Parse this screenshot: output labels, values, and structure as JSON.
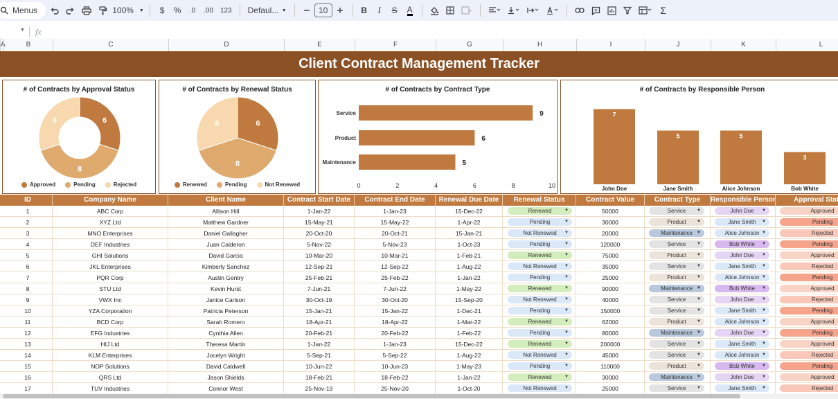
{
  "toolbar": {
    "menus_label": "Menus",
    "zoom": "100%",
    "currency": "$",
    "percent": "%",
    "dec_decrease": ".0",
    "dec_increase": ".00",
    "number_format": "123",
    "font": "Defaul...",
    "font_size": "10"
  },
  "formula_bar": {
    "cell_ref": "",
    "fx": "fx",
    "value": ""
  },
  "columns": [
    "A",
    "B",
    "C",
    "D",
    "E",
    "F",
    "G",
    "H",
    "I",
    "J",
    "K",
    "L"
  ],
  "title": "Client Contract Management Tracker",
  "charts": {
    "colors": {
      "dark": "#c07a3f",
      "mid": "#dfaa6e",
      "light": "#f8d8ae",
      "border": "#8b5125"
    },
    "approval": {
      "title": "# of Contracts by Approval Status",
      "legend": [
        "Approved",
        "Pending",
        "Rejected"
      ]
    },
    "renewal": {
      "title": "# of  Contracts   by Renewal Status",
      "legend": [
        "Renewed",
        "Pending",
        "Not Renewed"
      ]
    },
    "type": {
      "title": "# of  Contracts  by Contract Type"
    },
    "person": {
      "title": "# of  Contracts by Responsible Person"
    }
  },
  "chart_data": [
    {
      "type": "pie",
      "title": "# of Contracts by Approval Status",
      "donut": true,
      "categories": [
        "Approved",
        "Pending",
        "Rejected"
      ],
      "values": [
        6,
        8,
        6
      ]
    },
    {
      "type": "pie",
      "title": "# of  Contracts   by Renewal Status",
      "categories": [
        "Renewed",
        "Pending",
        "Not Renewed"
      ],
      "values": [
        6,
        8,
        6
      ]
    },
    {
      "type": "bar",
      "orientation": "horizontal",
      "title": "# of  Contracts  by Contract Type",
      "categories": [
        "Service",
        "Product",
        "Maintenance"
      ],
      "values": [
        9,
        6,
        5
      ],
      "xlim": [
        0,
        10
      ],
      "xticks": [
        "0",
        "2",
        "4",
        "6",
        "8",
        "10"
      ]
    },
    {
      "type": "bar",
      "title": "# of  Contracts by Responsible Person",
      "categories": [
        "John Doe",
        "Jane Smith",
        "Alice Johnson",
        "Bob White"
      ],
      "values": [
        7,
        5,
        5,
        3
      ]
    }
  ],
  "table": {
    "headers": [
      "ID",
      "Company Name",
      "Client Name",
      "Contract Start Date",
      "Contract End Date",
      "Renewal Due Date",
      "Renewal Status",
      "Contract Value",
      "Contract Type",
      "Responsible Person",
      "Approval Status"
    ],
    "chip_colors": {
      "Renewed": "#d4edbc",
      "Pending": "#dbe8f8",
      "Not Renewed": "#dbe8f8",
      "Service": "#e3e3e3",
      "Product": "#ece3da",
      "Maintenance": "#b9c8dc",
      "John Doe": "#e5d4f3",
      "Jane Smith": "#dbe8f8",
      "Alice Johnson": "#dbe8f8",
      "Bob White": "#d7b8ef",
      "Approved": "#f8d4c6",
      "Pending_appr": "#f7a48c",
      "Rejected": "#f9c8b8"
    },
    "rows": [
      [
        "1",
        "ABC Corp",
        "Allison Hill",
        "1-Jan-22",
        "1-Jan-23",
        "15-Dec-22",
        "Renewed",
        "50000",
        "Service",
        "John Doe",
        "Approved"
      ],
      [
        "2",
        "XYZ Ltd",
        "Matthew Gardner",
        "15-May-21",
        "15-May-22",
        "1-Apr-22",
        "Pending",
        "30000",
        "Product",
        "Jane Smith",
        "Pending"
      ],
      [
        "3",
        "MNO Enterprises",
        "Daniel Gallagher",
        "20-Oct-20",
        "20-Oct-21",
        "15-Jan-21",
        "Not Renewed",
        "20000",
        "Maintenance",
        "Alice Johnson",
        "Rejected"
      ],
      [
        "4",
        "DEF Industries",
        "Juan Calderon",
        "5-Nov-22",
        "5-Nov-23",
        "1-Oct-23",
        "Pending",
        "120000",
        "Service",
        "Bob White",
        "Pending"
      ],
      [
        "5",
        "GHI Solutions",
        "David Garcia",
        "10-Mar-20",
        "10-Mar-21",
        "1-Feb-21",
        "Renewed",
        "75000",
        "Product",
        "John Doe",
        "Approved"
      ],
      [
        "6",
        "JKL Enterprises",
        "Kimberly Sanchez",
        "12-Sep-21",
        "12-Sep-22",
        "1-Aug-22",
        "Not Renewed",
        "35000",
        "Service",
        "Jane Smith",
        "Rejected"
      ],
      [
        "7",
        "PQR Corp",
        "Austin Gentry",
        "25-Feb-21",
        "25-Feb-22",
        "1-Jan-22",
        "Pending",
        "25000",
        "Product",
        "Alice Johnson",
        "Pending"
      ],
      [
        "8",
        "STU Ltd",
        "Kevin Hurst",
        "7-Jun-21",
        "7-Jun-22",
        "1-May-22",
        "Renewed",
        "90000",
        "Maintenance",
        "Bob White",
        "Approved"
      ],
      [
        "9",
        "VWX Inc",
        "Janice Carlson",
        "30-Oct-19",
        "30-Oct-20",
        "15-Sep-20",
        "Not Renewed",
        "40000",
        "Service",
        "John Doe",
        "Rejected"
      ],
      [
        "10",
        "YZA Corporation",
        "Patricia Peterson",
        "15-Jan-21",
        "15-Jan-22",
        "1-Dec-21",
        "Pending",
        "150000",
        "Service",
        "Jane Smith",
        "Pending"
      ],
      [
        "11",
        "BCD Corp",
        "Sarah Romero",
        "18-Apr-21",
        "18-Apr-22",
        "1-Mar-22",
        "Renewed",
        "62000",
        "Product",
        "Alice Johnson",
        "Approved"
      ],
      [
        "12",
        "EFG Industries",
        "Cynthia Allen",
        "20-Feb-21",
        "20-Feb-22",
        "1-Feb-22",
        "Pending",
        "80000",
        "Maintenance",
        "John Doe",
        "Pending"
      ],
      [
        "13",
        "HIJ Ltd",
        "Theresa Martin",
        "1-Jan-22",
        "1-Jan-23",
        "15-Dec-22",
        "Renewed",
        "200000",
        "Service",
        "Jane Smith",
        "Approved"
      ],
      [
        "14",
        "KLM Enterprises",
        "Jocelyn Wright",
        "5-Sep-21",
        "5-Sep-22",
        "1-Aug-22",
        "Not Renewed",
        "45000",
        "Service",
        "Alice Johnson",
        "Rejected"
      ],
      [
        "15",
        "NOP Solutions",
        "David Caldwell",
        "10-Jun-22",
        "10-Jun-23",
        "1-May-23",
        "Pending",
        "110000",
        "Product",
        "Bob White",
        "Pending"
      ],
      [
        "16",
        "QRS Ltd",
        "Jason Shields",
        "18-Feb-21",
        "18-Feb-22",
        "1-Jan-22",
        "Renewed",
        "30000",
        "Maintenance",
        "John Doe",
        "Approved"
      ],
      [
        "17",
        "TUV Industries",
        "Connor West",
        "25-Nov-19",
        "25-Nov-20",
        "1-Oct-20",
        "Not Renewed",
        "25000",
        "Service",
        "Jane Smith",
        "Rejected"
      ]
    ]
  }
}
